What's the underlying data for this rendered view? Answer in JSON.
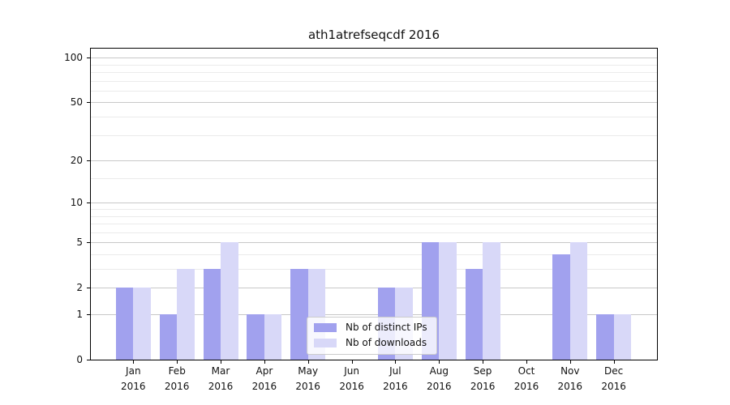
{
  "chart_data": {
    "type": "bar",
    "title": "ath1atrefseqcdf 2016",
    "months": [
      "Jan",
      "Feb",
      "Mar",
      "Apr",
      "May",
      "Jun",
      "Jul",
      "Aug",
      "Sep",
      "Oct",
      "Nov",
      "Dec"
    ],
    "year_label": "2016",
    "series": [
      {
        "name": "Nb of distinct IPs",
        "color": "#a1a1ee",
        "values": [
          2,
          1,
          3,
          1,
          3,
          0,
          2,
          5,
          3,
          0,
          4,
          1
        ]
      },
      {
        "name": "Nb of downloads",
        "color": "#d8d8f8",
        "values": [
          2,
          3,
          5,
          1,
          3,
          0,
          2,
          5,
          5,
          0,
          5,
          1
        ]
      }
    ],
    "xlabel": "",
    "ylabel": "",
    "y_axis": {
      "scale": "log1p",
      "ylim": [
        0,
        115
      ],
      "major_ticks": [
        0,
        1,
        2,
        5,
        10,
        20,
        50,
        100
      ],
      "minor_ticks": [
        3,
        4,
        6,
        7,
        8,
        9,
        15,
        30,
        40,
        60,
        70,
        80,
        90
      ]
    },
    "grid": {
      "major_color": "#c8c8c8",
      "minor_color": "#ebebeb",
      "orientation": "horizontal"
    },
    "legend_position": "lower center-right inside plot"
  }
}
